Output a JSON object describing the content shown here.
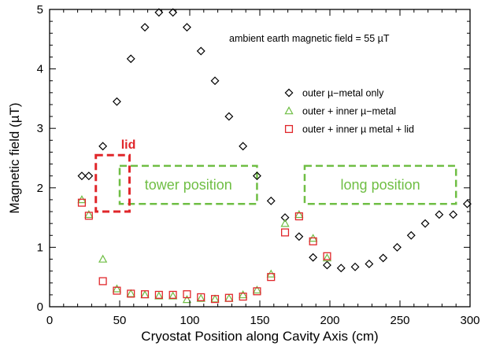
{
  "chart_data": {
    "type": "scatter",
    "title": "",
    "xlabel": "Cryostat Position along Cavity Axis (cm)",
    "ylabel": "Magnetic field (µT)",
    "xlim": [
      0,
      300
    ],
    "ylim": [
      0,
      5
    ],
    "x_ticks": [
      0,
      50,
      100,
      150,
      200,
      250,
      300
    ],
    "y_ticks": [
      0,
      1,
      2,
      3,
      4,
      5
    ],
    "grid": false,
    "legend_placement": "right",
    "annotation": "ambient earth magnetic field = 55 µT",
    "colors": {
      "outer_only": "#000000",
      "outer_inner": "#6fbe44",
      "outer_inner_lid": "#e0262a",
      "region_box": "#6fbe44",
      "lid_box": "#e0262a"
    },
    "series": [
      {
        "name": "outer µ−metal only",
        "marker": "diamond",
        "points": [
          [
            23,
            2.2
          ],
          [
            28,
            2.2
          ],
          [
            38,
            2.7
          ],
          [
            48,
            3.45
          ],
          [
            58,
            4.17
          ],
          [
            68,
            4.7
          ],
          [
            78,
            4.95
          ],
          [
            88,
            4.95
          ],
          [
            98,
            4.7
          ],
          [
            108,
            4.3
          ],
          [
            118,
            3.8
          ],
          [
            128,
            3.2
          ],
          [
            138,
            2.7
          ],
          [
            148,
            2.2
          ],
          [
            158,
            1.78
          ],
          [
            168,
            1.5
          ],
          [
            178,
            1.18
          ],
          [
            188,
            0.83
          ],
          [
            198,
            0.7
          ],
          [
            208,
            0.65
          ],
          [
            218,
            0.67
          ],
          [
            228,
            0.72
          ],
          [
            238,
            0.82
          ],
          [
            248,
            1.0
          ],
          [
            258,
            1.2
          ],
          [
            268,
            1.4
          ],
          [
            278,
            1.55
          ],
          [
            288,
            1.55
          ],
          [
            298,
            1.73
          ]
        ]
      },
      {
        "name": "outer + inner µ−metal",
        "marker": "triangle",
        "points": [
          [
            23,
            1.8
          ],
          [
            28,
            1.55
          ],
          [
            38,
            0.8
          ],
          [
            48,
            0.3
          ],
          [
            58,
            0.22
          ],
          [
            68,
            0.2
          ],
          [
            78,
            0.18
          ],
          [
            88,
            0.18
          ],
          [
            98,
            0.12
          ],
          [
            108,
            0.14
          ],
          [
            118,
            0.13
          ],
          [
            128,
            0.14
          ],
          [
            138,
            0.2
          ],
          [
            148,
            0.28
          ],
          [
            158,
            0.55
          ],
          [
            168,
            1.4
          ],
          [
            178,
            1.55
          ],
          [
            188,
            1.15
          ],
          [
            198,
            0.82
          ]
        ]
      },
      {
        "name": "outer + inner µ metal + lid",
        "marker": "square",
        "points": [
          [
            23,
            1.75
          ],
          [
            28,
            1.53
          ],
          [
            38,
            0.43
          ],
          [
            48,
            0.27
          ],
          [
            58,
            0.22
          ],
          [
            68,
            0.21
          ],
          [
            78,
            0.2
          ],
          [
            88,
            0.2
          ],
          [
            98,
            0.21
          ],
          [
            108,
            0.16
          ],
          [
            118,
            0.13
          ],
          [
            128,
            0.15
          ],
          [
            138,
            0.17
          ],
          [
            148,
            0.26
          ],
          [
            158,
            0.5
          ],
          [
            168,
            1.25
          ],
          [
            178,
            1.52
          ],
          [
            188,
            1.1
          ],
          [
            198,
            0.85
          ]
        ]
      }
    ],
    "regions": [
      {
        "label": "tower position",
        "x": [
          50,
          148
        ],
        "y": [
          1.73,
          2.37
        ],
        "color": "#6fbe44"
      },
      {
        "label": "long position",
        "x": [
          182,
          290
        ],
        "y": [
          1.73,
          2.37
        ],
        "color": "#6fbe44"
      }
    ],
    "lid_box": {
      "label": "lid",
      "x": [
        33,
        57
      ],
      "y": [
        1.6,
        2.55
      ],
      "color": "#e0262a"
    }
  }
}
